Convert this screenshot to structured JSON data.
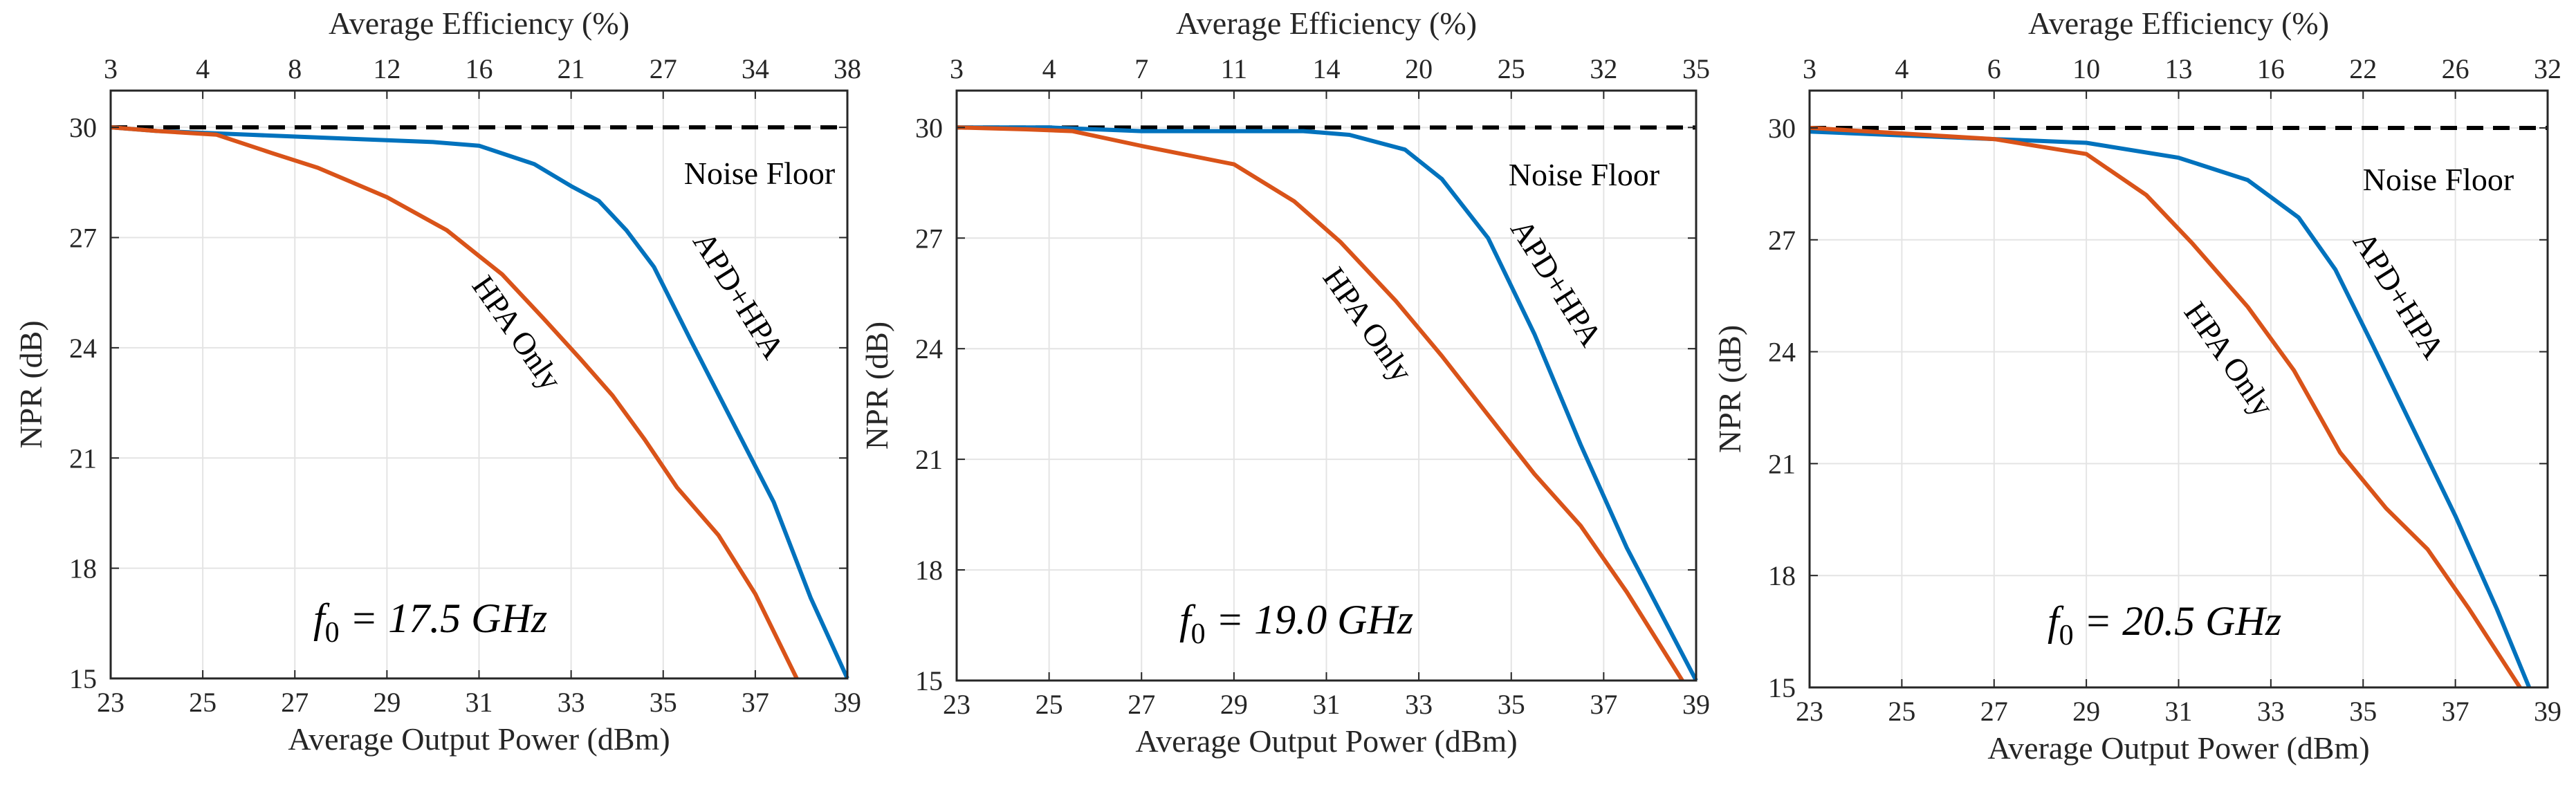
{
  "chart_data": [
    {
      "type": "line",
      "title": "",
      "xlabel": "Average Output Power (dBm)",
      "x2label": "Average Efficiency (%)",
      "ylabel": "NPR (dB)",
      "xlim": [
        23,
        39
      ],
      "ylim": [
        15,
        31
      ],
      "xticks": [
        "23",
        "25",
        "27",
        "29",
        "31",
        "33",
        "35",
        "37",
        "39"
      ],
      "x2ticks": [
        "3",
        "4",
        "8",
        "12",
        "16",
        "21",
        "27",
        "34",
        "38"
      ],
      "yticks": [
        "15",
        "18",
        "21",
        "24",
        "27",
        "30"
      ],
      "grid": true,
      "noise_floor": {
        "label": "Noise Floor",
        "value": 30
      },
      "annotation": {
        "symbol": "f",
        "subscript": "0",
        "text": " = 17.5 GHz"
      },
      "series": [
        {
          "name": "APD+HPA",
          "color": "#0072BD",
          "x": [
            23,
            24,
            26,
            28,
            30,
            31,
            32.2,
            33,
            33.6,
            34.2,
            34.8,
            35.6,
            36.5,
            37.4,
            38.2,
            39
          ],
          "y": [
            30,
            29.9,
            29.8,
            29.7,
            29.6,
            29.5,
            29,
            28.4,
            28,
            27.2,
            26.2,
            24.2,
            22,
            19.8,
            17.2,
            15
          ]
        },
        {
          "name": "HPA Only",
          "color": "#D95319",
          "x": [
            23,
            24,
            25.3,
            26.5,
            27.5,
            29,
            30.3,
            31,
            31.5,
            32.4,
            33.2,
            33.9,
            34.6,
            35.3,
            36.2,
            37,
            37.9
          ],
          "y": [
            30,
            29.9,
            29.8,
            29.3,
            28.9,
            28.1,
            27.2,
            26.5,
            26,
            24.8,
            23.7,
            22.7,
            21.5,
            20.2,
            18.9,
            17.3,
            15
          ]
        }
      ],
      "curve_labels": [
        "APD+HPA",
        "HPA Only"
      ]
    },
    {
      "type": "line",
      "title": "",
      "xlabel": "Average Output Power (dBm)",
      "x2label": "Average Efficiency (%)",
      "ylabel": "NPR (dB)",
      "xlim": [
        23,
        39
      ],
      "ylim": [
        15,
        31
      ],
      "xticks": [
        "23",
        "25",
        "27",
        "29",
        "31",
        "33",
        "35",
        "37",
        "39"
      ],
      "x2ticks": [
        "3",
        "4",
        "7",
        "11",
        "14",
        "20",
        "25",
        "32",
        "35"
      ],
      "yticks": [
        "15",
        "18",
        "21",
        "24",
        "27",
        "30"
      ],
      "grid": true,
      "noise_floor": {
        "label": "Noise Floor",
        "value": 30
      },
      "annotation": {
        "symbol": "f",
        "subscript": "0",
        "text": " = 19.0 GHz"
      },
      "series": [
        {
          "name": "APD+HPA",
          "color": "#0072BD",
          "x": [
            23,
            25,
            27,
            29,
            30.5,
            31.5,
            32.7,
            33.5,
            34.5,
            35.5,
            36.5,
            37.5,
            38.5,
            39
          ],
          "y": [
            30,
            30,
            29.9,
            29.9,
            29.9,
            29.8,
            29.4,
            28.6,
            27,
            24.4,
            21.4,
            18.6,
            16.2,
            15
          ]
        },
        {
          "name": "HPA Only",
          "color": "#D95319",
          "x": [
            23,
            24.5,
            25.5,
            27,
            29,
            30.3,
            31.3,
            32.5,
            33.5,
            34.5,
            35.5,
            36.5,
            37.5,
            38.7
          ],
          "y": [
            30,
            29.95,
            29.9,
            29.5,
            29,
            28,
            26.9,
            25.3,
            23.8,
            22.2,
            20.6,
            19.2,
            17.4,
            15
          ]
        }
      ],
      "curve_labels": [
        "APD+HPA",
        "HPA Only"
      ]
    },
    {
      "type": "line",
      "title": "",
      "xlabel": "Average Output Power (dBm)",
      "x2label": "Average Efficiency (%)",
      "ylabel": "NPR (dB)",
      "xlim": [
        23,
        39
      ],
      "ylim": [
        15,
        31
      ],
      "xticks": [
        "23",
        "25",
        "27",
        "29",
        "31",
        "33",
        "35",
        "37",
        "39"
      ],
      "x2ticks": [
        "3",
        "4",
        "6",
        "10",
        "13",
        "16",
        "22",
        "26",
        "32"
      ],
      "yticks": [
        "15",
        "18",
        "21",
        "24",
        "27",
        "30"
      ],
      "grid": true,
      "noise_floor": {
        "label": "Noise Floor",
        "value": 30
      },
      "annotation": {
        "symbol": "f",
        "subscript": "0",
        "text": " = 20.5 GHz"
      },
      "series": [
        {
          "name": "APD+HPA",
          "color": "#0072BD",
          "x": [
            23,
            25,
            27,
            29,
            31,
            32.5,
            33.6,
            34.4,
            35.2,
            36.1,
            37,
            37.9,
            38.6
          ],
          "y": [
            29.9,
            29.8,
            29.7,
            29.6,
            29.2,
            28.6,
            27.6,
            26.2,
            24.2,
            21.9,
            19.6,
            17.1,
            15
          ]
        },
        {
          "name": "HPA Only",
          "color": "#D95319",
          "x": [
            23,
            25,
            27,
            28,
            29,
            30.3,
            31.3,
            32.5,
            33.5,
            34.5,
            35.5,
            36.4,
            37.3,
            38.4
          ],
          "y": [
            30,
            29.85,
            29.7,
            29.5,
            29.3,
            28.2,
            26.9,
            25.2,
            23.5,
            21.3,
            19.8,
            18.7,
            17.1,
            15
          ]
        }
      ],
      "curve_labels": [
        "APD+HPA",
        "HPA Only"
      ]
    }
  ]
}
